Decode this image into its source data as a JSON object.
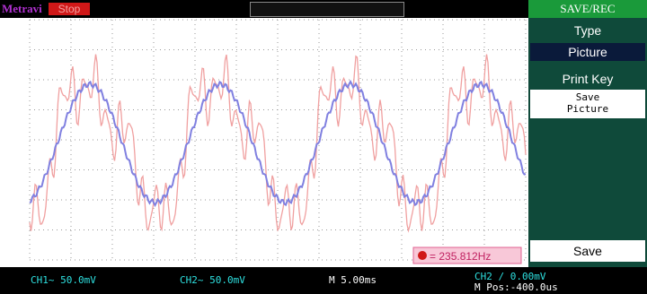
{
  "header": {
    "brand": "Metravi",
    "status": "Stop"
  },
  "menu": {
    "title": "SAVE/REC",
    "items": [
      {
        "label": "Type",
        "value": "Picture"
      },
      {
        "label": "Print Key",
        "value": "Save Picture"
      },
      {
        "label": "Save"
      }
    ]
  },
  "measurement": {
    "frequency": "= 235.812Hz"
  },
  "footer": {
    "ch1": "CH1~ 50.0mV",
    "ch2": "CH2~ 50.0mV",
    "timebase": "M 5.00ms",
    "trigger": "CH2 / 0.00mV",
    "position": "M Pos:-400.0us"
  }
}
